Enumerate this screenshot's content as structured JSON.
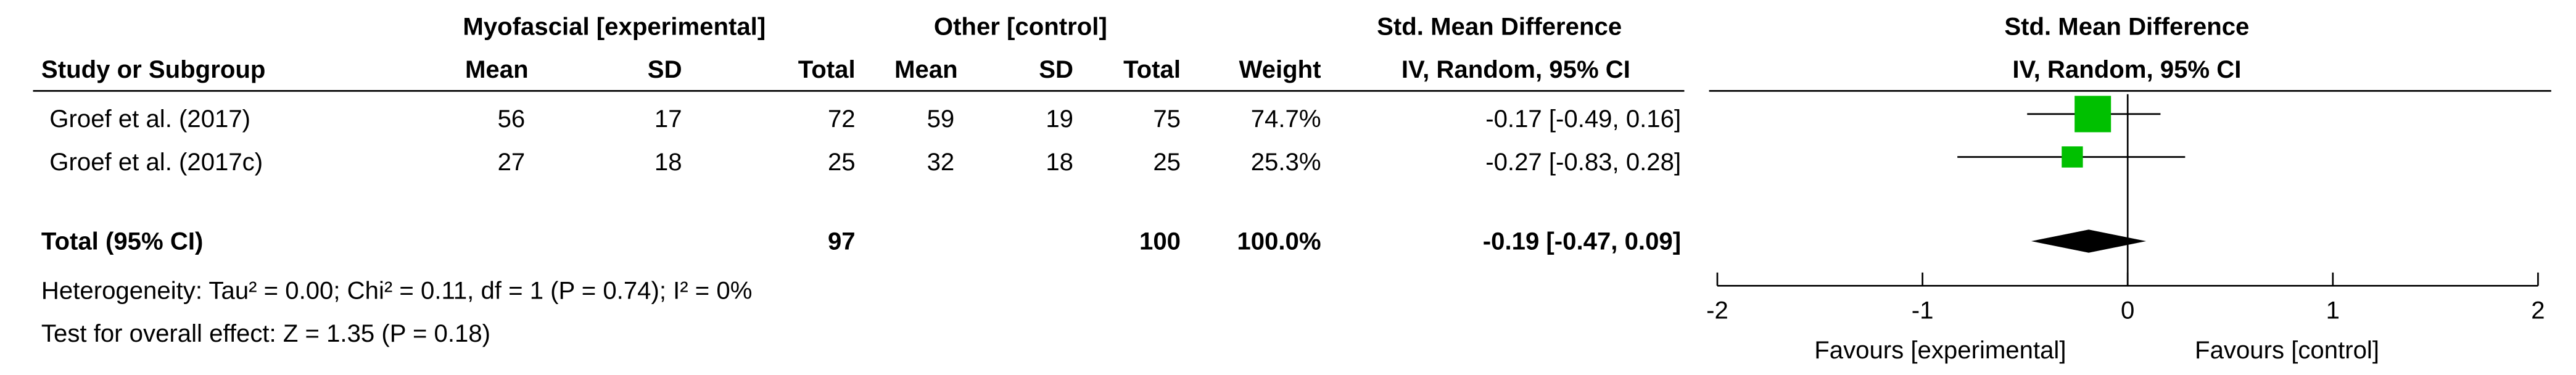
{
  "chart_data": {
    "type": "forest",
    "group_headers": [
      "Myofascial [experimental]",
      "Other [control]"
    ],
    "columns": [
      "Study or Subgroup",
      "Mean",
      "SD",
      "Total",
      "Mean",
      "SD",
      "Total",
      "Weight"
    ],
    "effect_header": [
      "Std. Mean Difference",
      "IV, Random, 95% CI"
    ],
    "plot_header": [
      "Std. Mean Difference",
      "IV, Random, 95% CI"
    ],
    "studies": [
      {
        "name": "Groef et al. (2017)",
        "experimental": [
          56,
          17,
          72
        ],
        "control": [
          59,
          19,
          75
        ],
        "weight": {
          "value": 74.7,
          "label": "74.7%"
        },
        "smd": -0.17,
        "ci": [
          -0.49,
          0.16
        ],
        "ci_label": "-0.17 [-0.49, 0.16]"
      },
      {
        "name": "Groef et al. (2017c)",
        "experimental": [
          27,
          18,
          25
        ],
        "control": [
          32,
          18,
          25
        ],
        "weight": {
          "value": 25.3,
          "label": "25.3%"
        },
        "smd": -0.27,
        "ci": [
          -0.83,
          0.28
        ],
        "ci_label": "-0.27 [-0.83, 0.28]"
      }
    ],
    "total": {
      "name": "Total (95% CI)",
      "experimental_total": 97,
      "control_total": 100,
      "weight": {
        "value": 100,
        "label": "100.0%"
      },
      "smd": -0.19,
      "ci": [
        -0.47,
        0.09
      ],
      "ci_label": "-0.19 [-0.47, 0.09]"
    },
    "heterogeneity": "Heterogeneity: Tau² = 0.00; Chi² = 0.11, df = 1 (P = 0.74); I² = 0%",
    "overall_effect": "Test for overall effect: Z = 1.35 (P = 0.18)",
    "xlim": [
      -2,
      2
    ],
    "xticks": [
      -2,
      -1,
      0,
      1,
      2
    ],
    "xlabels": [
      "Favours [experimental]",
      "Favours [control]"
    ],
    "square_color": "#00c000",
    "diamond_color": "#000000"
  }
}
